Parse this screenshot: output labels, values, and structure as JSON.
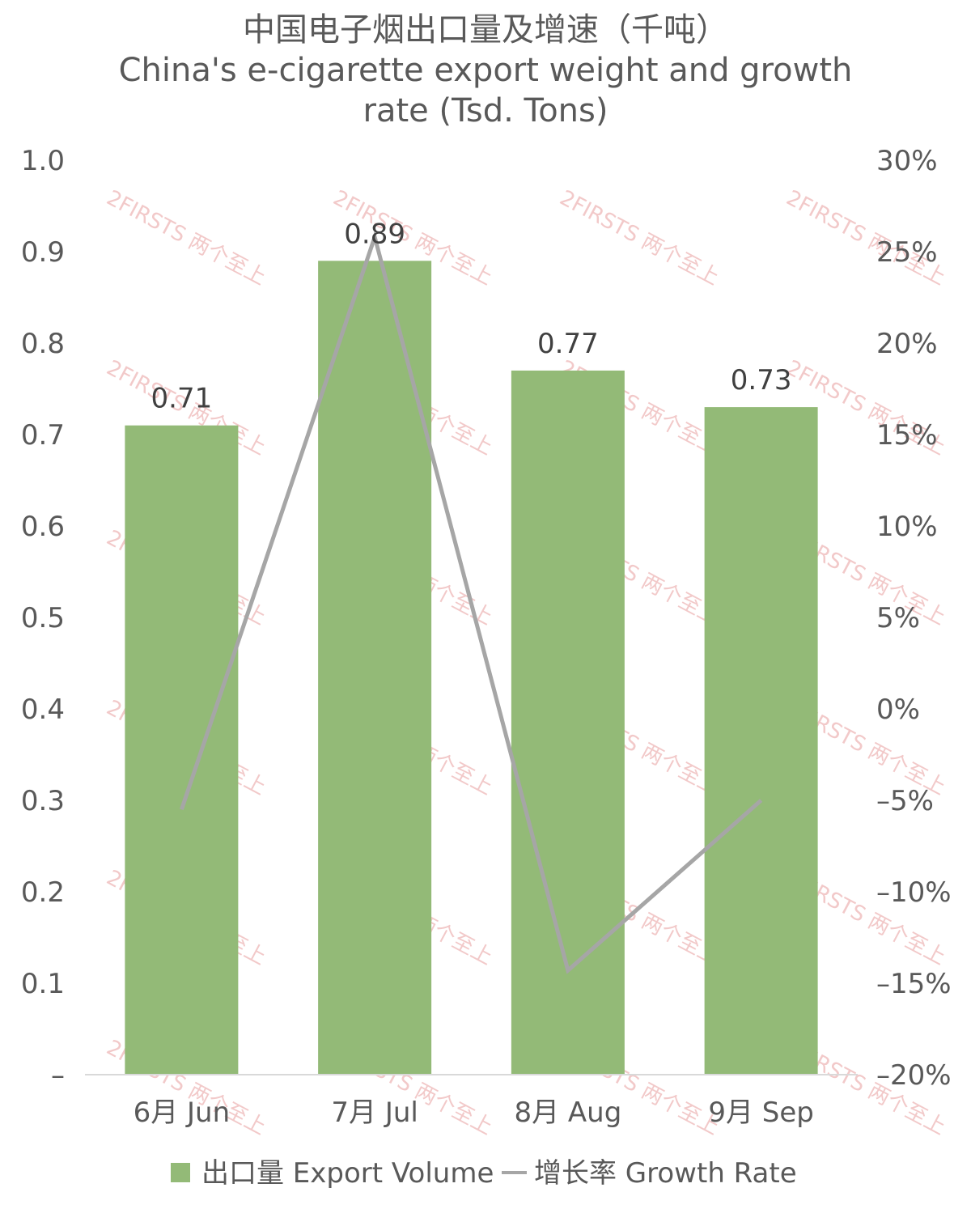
{
  "chart_data": {
    "type": "bar",
    "title_zh": "中国电子烟出口量及增速（千吨）",
    "title_en_line1": "China's e-cigarette export weight and growth",
    "title_en_line2": "rate (Tsd. Tons)",
    "categories": [
      "6月 Jun",
      "7月 Jul",
      "8月 Aug",
      "9月 Sep"
    ],
    "series": [
      {
        "name": "出口量 Export Volume",
        "kind": "bar",
        "axis": "left",
        "color": "#93ba77",
        "values": [
          0.71,
          0.89,
          0.77,
          0.73
        ],
        "data_labels": [
          "0.71",
          "0.89",
          "0.77",
          "0.73"
        ]
      },
      {
        "name": "增长率 Growth Rate",
        "kind": "line",
        "axis": "right",
        "color": "#a6a6a6",
        "values": [
          -5.5,
          25.8,
          -14.3,
          -5.0
        ]
      }
    ],
    "y_left": {
      "range": [
        0,
        1.0
      ],
      "ticks": [
        0,
        0.1,
        0.2,
        0.3,
        0.4,
        0.5,
        0.6,
        0.7,
        0.8,
        0.9,
        1.0
      ],
      "tick_labels": [
        "–",
        "0.1",
        "0.2",
        "0.3",
        "0.4",
        "0.5",
        "0.6",
        "0.7",
        "0.8",
        "0.9",
        "1.0"
      ]
    },
    "y_right": {
      "range": [
        -20,
        30
      ],
      "ticks": [
        -20,
        -15,
        -10,
        -5,
        0,
        5,
        10,
        15,
        20,
        25,
        30
      ],
      "tick_labels": [
        "–20%",
        "–15%",
        "–10%",
        "–5%",
        "0%",
        "5%",
        "10%",
        "15%",
        "20%",
        "25%",
        "30%"
      ]
    },
    "grid": false,
    "legend_position": "bottom",
    "watermark_text": "2FIRSTS 两个至上"
  }
}
